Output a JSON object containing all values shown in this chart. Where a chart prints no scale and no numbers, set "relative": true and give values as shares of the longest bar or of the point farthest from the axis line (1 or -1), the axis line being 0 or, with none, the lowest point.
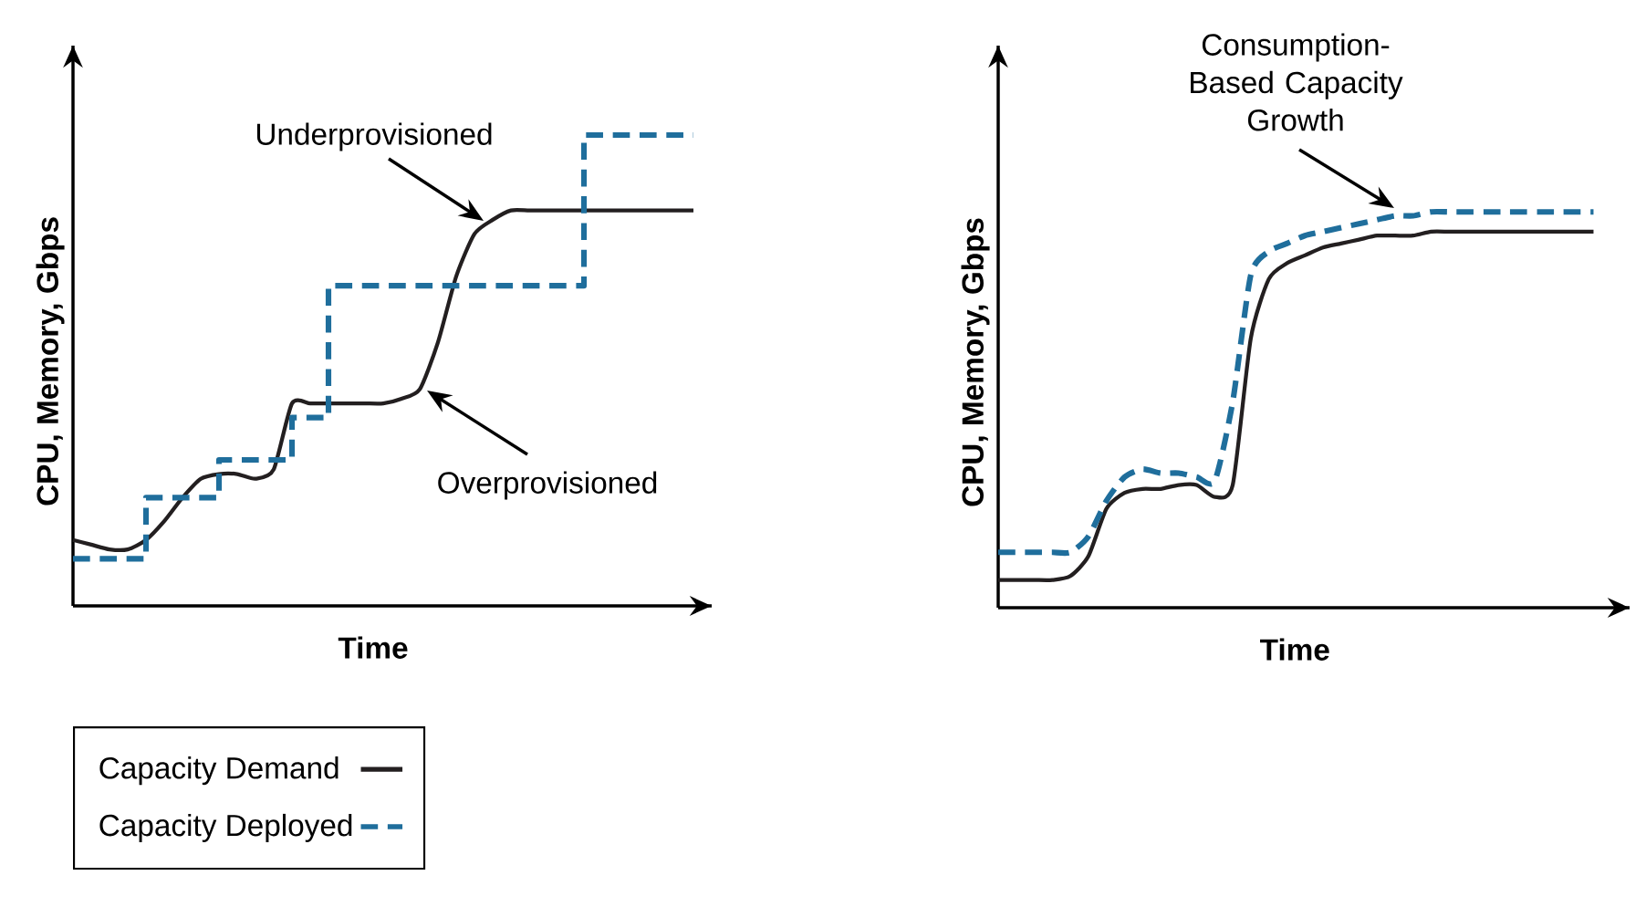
{
  "chart_data": [
    {
      "type": "line",
      "relative": true,
      "xlabel": "Time",
      "ylabel": "CPU, Memory, Gbps",
      "legend": "bottom left",
      "categories": [
        null,
        null,
        null,
        null,
        null,
        null,
        null,
        null,
        null,
        null,
        null,
        null,
        null,
        null,
        null,
        null,
        null,
        null,
        null,
        null,
        null,
        null,
        null,
        null,
        null,
        null,
        null,
        null,
        null,
        null,
        null,
        null,
        null,
        null,
        null
      ],
      "series": [
        {
          "name": "Capacity Demand",
          "color": "#231f20",
          "line_style": "solid",
          "values": [
            0.14,
            0.13,
            0.12,
            0.12,
            0.14,
            0.18,
            0.23,
            0.27,
            0.28,
            0.28,
            0.27,
            0.29,
            0.43,
            0.43,
            0.43,
            0.43,
            0.43,
            0.43,
            0.44,
            0.46,
            0.56,
            0.7,
            0.79,
            0.82,
            0.84,
            0.84,
            0.84,
            0.84,
            0.84,
            0.84,
            0.84,
            0.84,
            0.84,
            0.84,
            0.84
          ]
        },
        {
          "name": "Capacity Deployed",
          "type": "step",
          "color": "#1f6e9c",
          "line_style": "dashed",
          "values": [
            0.1,
            0.1,
            0.1,
            0.1,
            0.23,
            0.23,
            0.23,
            0.23,
            0.31,
            0.31,
            0.31,
            0.31,
            0.4,
            0.4,
            0.68,
            0.68,
            0.68,
            0.68,
            0.68,
            0.68,
            0.68,
            0.68,
            0.68,
            0.68,
            0.68,
            0.68,
            0.68,
            0.68,
            1.0,
            1.0,
            1.0,
            1.0,
            1.0,
            1.0,
            1.0
          ]
        }
      ],
      "annotations": [
        "Underprovisioned",
        "Overprovisioned"
      ]
    },
    {
      "type": "line",
      "relative": true,
      "xlabel": "Time",
      "ylabel": "CPU, Memory, Gbps",
      "categories": [
        null,
        null,
        null,
        null,
        null,
        null,
        null,
        null,
        null,
        null,
        null,
        null,
        null,
        null,
        null,
        null,
        null,
        null,
        null,
        null,
        null,
        null,
        null,
        null,
        null,
        null,
        null,
        null,
        null,
        null,
        null,
        null,
        null,
        null
      ],
      "series": [
        {
          "color": "#231f20",
          "line_style": "solid",
          "values": [
            0.07,
            0.07,
            0.07,
            0.07,
            0.08,
            0.13,
            0.25,
            0.29,
            0.3,
            0.3,
            0.31,
            0.31,
            0.28,
            0.31,
            0.68,
            0.83,
            0.87,
            0.89,
            0.91,
            0.92,
            0.93,
            0.94,
            0.94,
            0.94,
            0.95,
            0.95,
            0.95,
            0.95,
            0.95,
            0.95,
            0.95,
            0.95,
            0.95,
            0.95
          ]
        },
        {
          "color": "#1f6e9c",
          "line_style": "dashed",
          "values": [
            0.14,
            0.14,
            0.14,
            0.14,
            0.14,
            0.18,
            0.27,
            0.33,
            0.35,
            0.34,
            0.34,
            0.33,
            0.32,
            0.52,
            0.84,
            0.9,
            0.92,
            0.94,
            0.95,
            0.96,
            0.97,
            0.98,
            0.99,
            0.99,
            1.0,
            1.0,
            1.0,
            1.0,
            1.0,
            1.0,
            1.0,
            1.0,
            1.0,
            1.0
          ]
        }
      ],
      "annotations": [
        "Consumption-Based Capacity Growth"
      ]
    }
  ]
}
